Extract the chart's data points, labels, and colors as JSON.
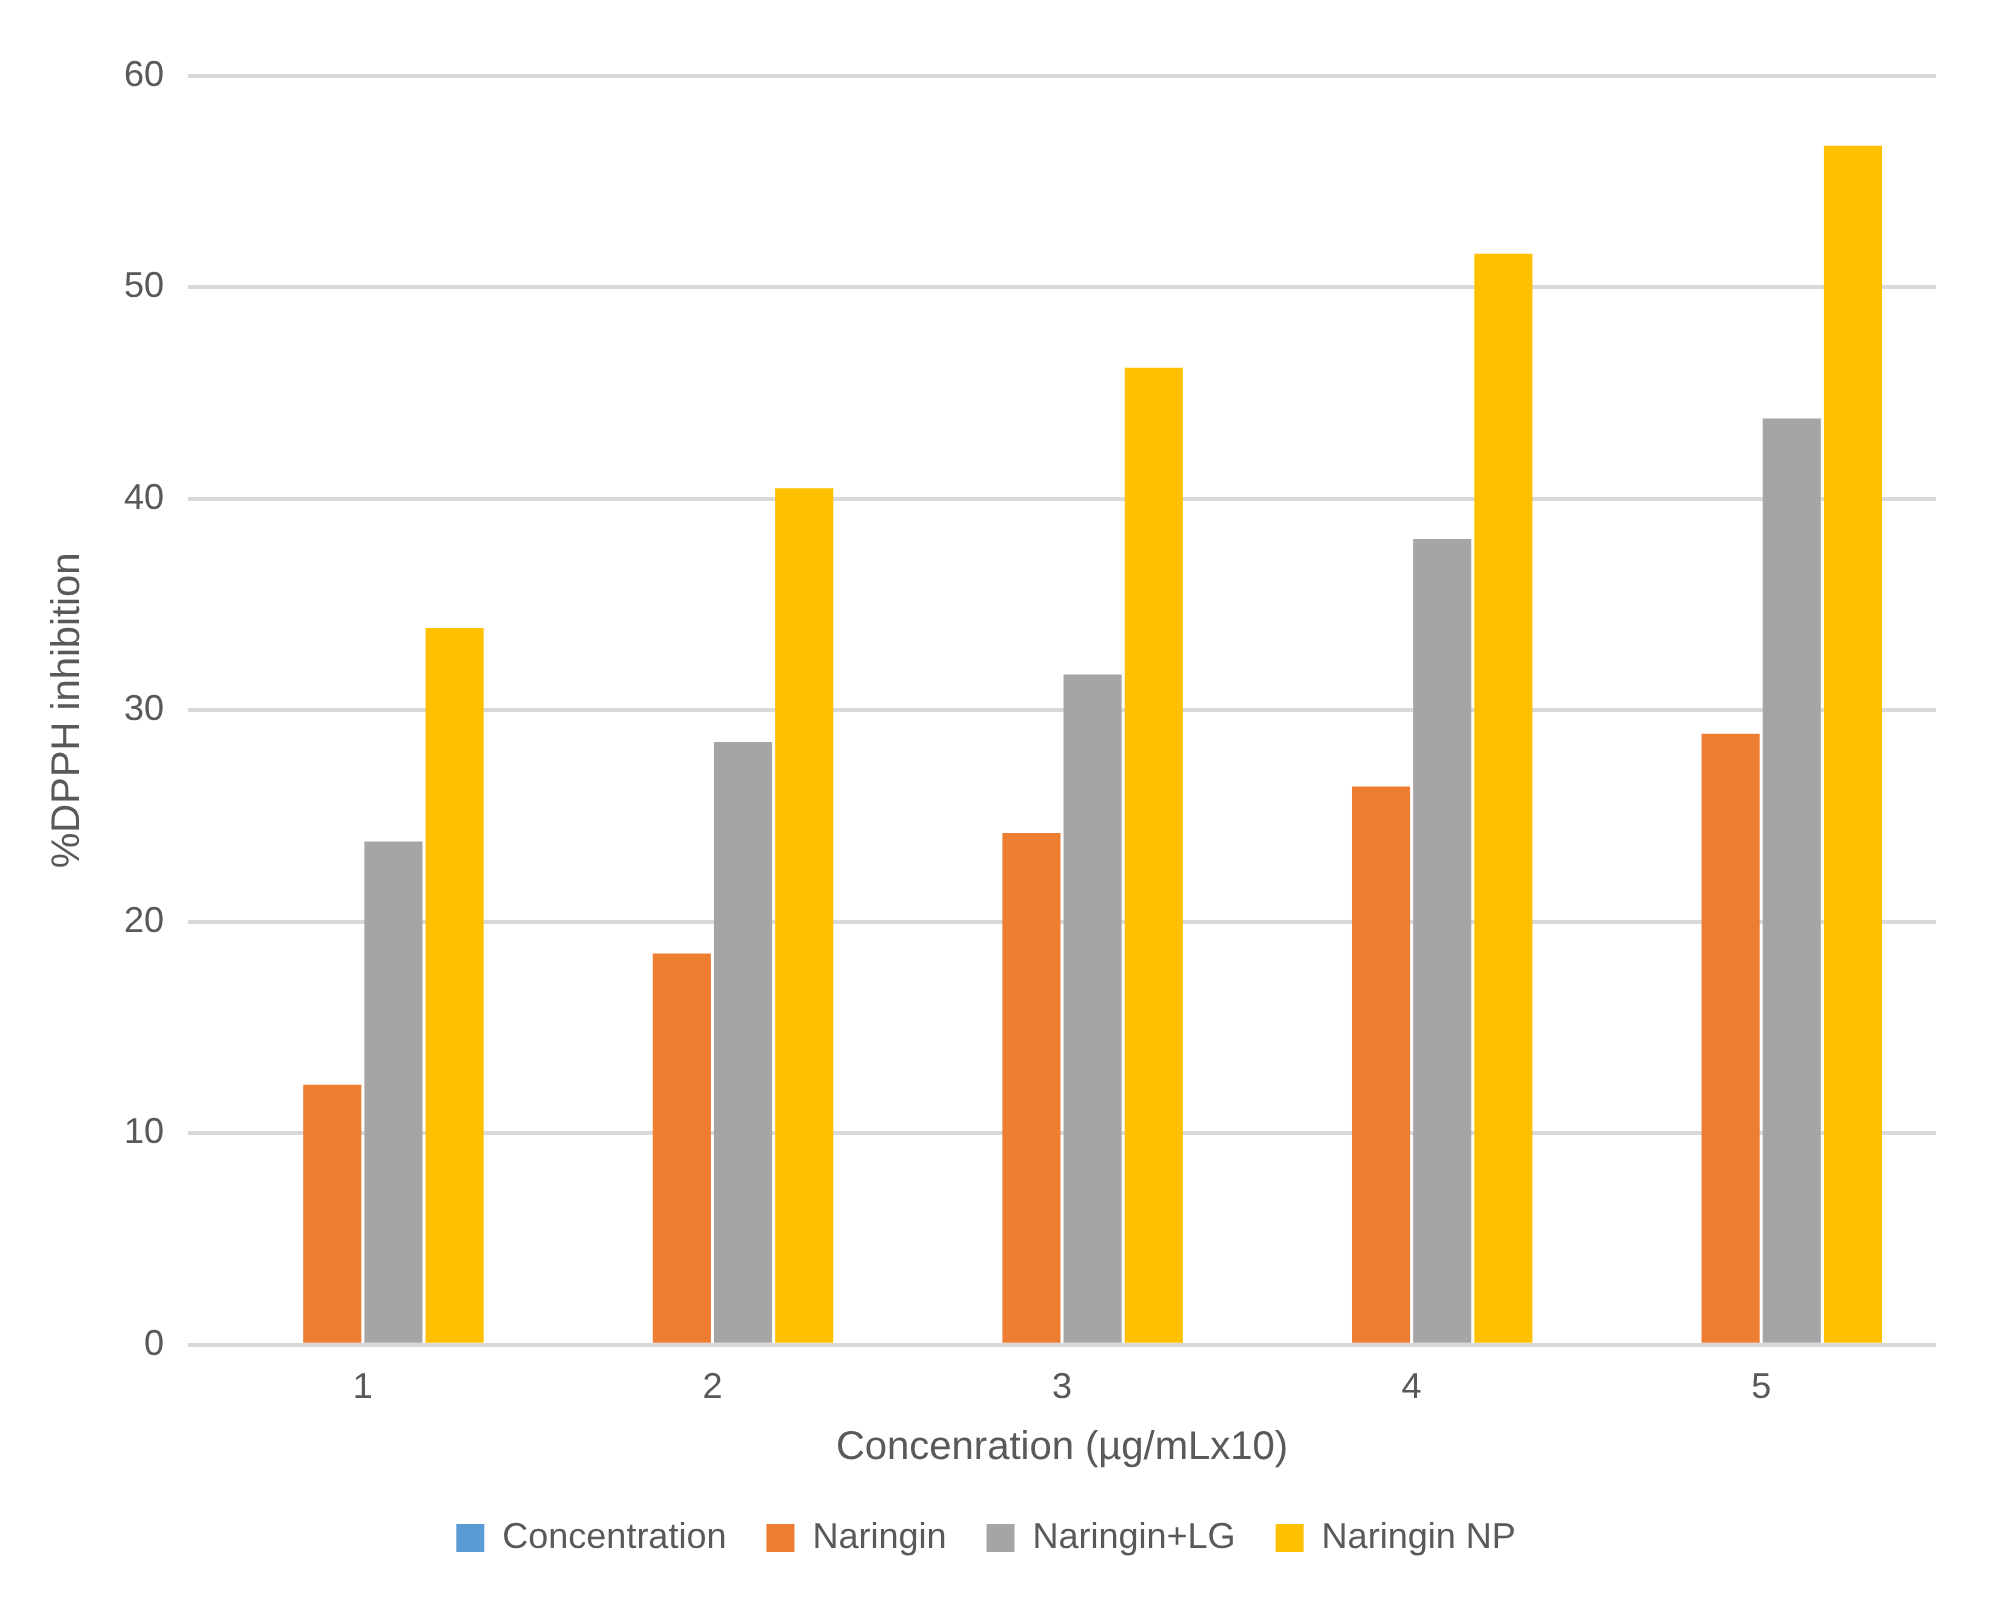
{
  "chart_data": {
    "type": "bar",
    "xlabel": "Concenration (µg/mLx10)",
    "ylabel": "%DPPH inhibition",
    "categories": [
      "1",
      "2",
      "3",
      "4",
      "5"
    ],
    "series": [
      {
        "name": "Concentration",
        "color": "#5b9bd5",
        "values": [
          0,
          0,
          0,
          0,
          0
        ]
      },
      {
        "name": "Naringin",
        "color": "#ed7d31",
        "values": [
          12.3,
          18.5,
          24.2,
          26.4,
          28.9
        ]
      },
      {
        "name": "Naringin+LG",
        "color": "#a5a5a5",
        "values": [
          23.8,
          28.5,
          31.7,
          38.1,
          43.8
        ]
      },
      {
        "name": "Naringin NP",
        "color": "#ffc000",
        "values": [
          33.9,
          40.5,
          46.2,
          51.6,
          56.7
        ]
      }
    ],
    "ylim": [
      0,
      60
    ],
    "yticks": [
      0,
      10,
      20,
      30,
      40,
      50,
      60
    ],
    "grid": "y",
    "legend": "bottom"
  }
}
